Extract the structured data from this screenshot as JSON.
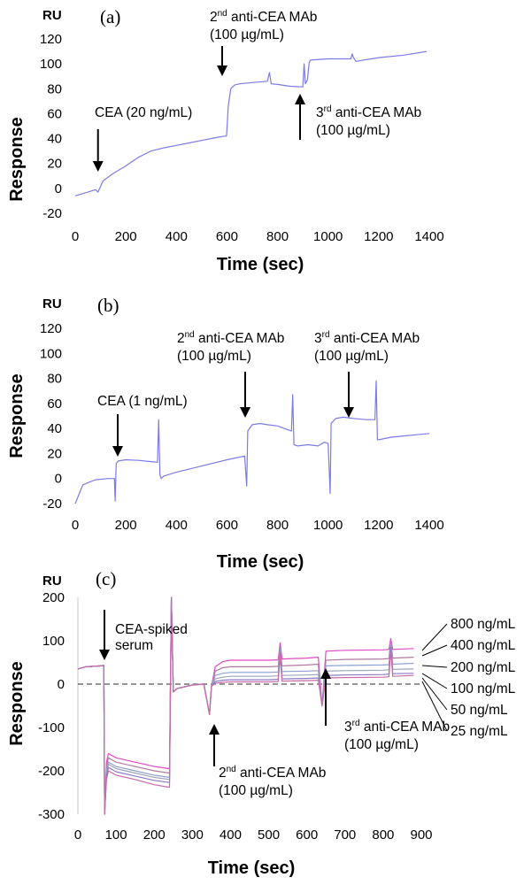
{
  "chart_data": [
    {
      "type": "line",
      "panel_label": "(a)",
      "unit_label": "RU",
      "xlabel": "Time (sec)",
      "ylabel": "Response",
      "xlim": [
        0,
        1400
      ],
      "ylim": [
        -20,
        120
      ],
      "xticks": [
        "0",
        "200",
        "400",
        "600",
        "800",
        "1000",
        "1200",
        "1400"
      ],
      "yticks": [
        "-20",
        "0",
        "20",
        "40",
        "60",
        "80",
        "100",
        "120"
      ],
      "color": "#7b7be6",
      "series": [
        {
          "x": [
            0,
            50,
            80,
            90,
            110,
            150,
            200,
            250,
            300,
            350,
            400,
            450,
            500,
            550,
            590,
            598,
            605,
            615,
            630,
            650,
            700,
            760,
            768,
            775,
            800,
            850,
            900,
            905,
            910,
            918,
            925,
            930,
            1000,
            1050,
            1090,
            1095,
            1100,
            1110,
            1200,
            1300,
            1390
          ],
          "y": [
            -6,
            -3,
            -1,
            -3,
            6,
            12,
            18,
            25,
            30,
            32.5,
            34.5,
            36.5,
            38.5,
            40.5,
            42,
            42,
            66,
            80,
            83,
            84,
            85,
            86,
            93,
            84,
            83.5,
            82,
            81.5,
            100,
            84,
            87,
            101,
            103,
            104,
            104,
            104,
            108,
            105,
            102,
            105,
            107,
            110
          ]
        }
      ],
      "annotations": [
        {
          "lines": [
            "CEA (20 ng/mL)"
          ],
          "arrow": "down",
          "x": 90
        },
        {
          "lines": [
            "2nd anti-CEA MAb",
            "(100 µg/mL)"
          ],
          "arrow": "down",
          "x": 600
        },
        {
          "lines": [
            "3rd anti-CEA MAb",
            "(100 µg/mL)"
          ],
          "arrow": "up",
          "x": 920
        }
      ]
    },
    {
      "type": "line",
      "panel_label": "(b)",
      "unit_label": "RU",
      "xlabel": "Time (sec)",
      "ylabel": "Response",
      "xlim": [
        0,
        1400
      ],
      "ylim": [
        -20,
        120
      ],
      "xticks": [
        "0",
        "200",
        "400",
        "600",
        "800",
        "1000",
        "1200",
        "1400"
      ],
      "yticks": [
        "-20",
        "0",
        "20",
        "40",
        "60",
        "80",
        "100",
        "120"
      ],
      "color": "#7b7be6",
      "series": [
        {
          "x": [
            0,
            30,
            80,
            130,
            155,
            158,
            162,
            170,
            200,
            250,
            300,
            325,
            330,
            335,
            340,
            350,
            400,
            500,
            600,
            670,
            678,
            682,
            700,
            730,
            760,
            800,
            840,
            855,
            860,
            865,
            880,
            920,
            960,
            985,
            1000,
            1008,
            1012,
            1030,
            1060,
            1100,
            1150,
            1185,
            1190,
            1195,
            1200,
            1250,
            1300,
            1350,
            1400
          ],
          "y": [
            -20,
            -5,
            -1,
            0,
            0,
            -18,
            12,
            14,
            15,
            14.5,
            13.5,
            13,
            47,
            3,
            0,
            2,
            5,
            10,
            15,
            18,
            -6,
            38,
            43,
            44,
            43,
            42,
            39,
            38,
            67,
            27,
            26,
            27,
            26,
            29,
            28,
            -12,
            44,
            48,
            49,
            48,
            47,
            47,
            78,
            31,
            31,
            33,
            34,
            35,
            36
          ]
        }
      ],
      "annotations": [
        {
          "lines": [
            "CEA (1 ng/mL)"
          ],
          "arrow": "down",
          "x": 160
        },
        {
          "lines": [
            "2nd anti-CEA MAb",
            "(100 µg/mL)"
          ],
          "arrow": "down",
          "x": 680
        },
        {
          "lines": [
            "3rd anti-CEA MAb",
            "(100 µg/mL)"
          ],
          "arrow": "down",
          "x": 1010
        }
      ]
    },
    {
      "type": "line",
      "panel_label": "(c)",
      "unit_label": "RU",
      "xlabel": "Time (sec)",
      "ylabel": "Response",
      "xlim": [
        0,
        900
      ],
      "ylim": [
        -300,
        200
      ],
      "xticks": [
        "0",
        "100",
        "200",
        "300",
        "400",
        "500",
        "600",
        "700",
        "800",
        "900"
      ],
      "yticks": [
        "-300",
        "-200",
        "-100",
        "0",
        "100",
        "200"
      ],
      "baseline": 0,
      "x": [
        0,
        20,
        60,
        68,
        70,
        75,
        80,
        100,
        150,
        200,
        240,
        245,
        250,
        260,
        300,
        330,
        345,
        350,
        360,
        380,
        400,
        500,
        525,
        530,
        535,
        600,
        630,
        640,
        650,
        700,
        800,
        815,
        820,
        825,
        880
      ],
      "series": [
        {
          "name": "800 ng/mL",
          "color": "#e04bc4",
          "y": [
            35,
            40,
            42,
            43,
            -300,
            -180,
            -160,
            -170,
            -180,
            -190,
            -195,
            200,
            -18,
            -10,
            -2,
            0,
            -70,
            -5,
            40,
            52,
            55,
            55,
            56,
            95,
            58,
            60,
            62,
            -50,
            76,
            78,
            79,
            80,
            105,
            80,
            82
          ]
        },
        {
          "name": "400 ng/mL",
          "color": "#b07aa0",
          "y": [
            35,
            40,
            42,
            43,
            -300,
            -190,
            -170,
            -180,
            -190,
            -200,
            -205,
            200,
            -18,
            -10,
            -2,
            0,
            -70,
            -5,
            30,
            38,
            40,
            40,
            41,
            85,
            42,
            44,
            46,
            -50,
            55,
            57,
            58,
            59,
            100,
            60,
            62
          ]
        },
        {
          "name": "200 ng/mL",
          "color": "#8fa0d0",
          "y": [
            35,
            40,
            42,
            43,
            -300,
            -200,
            -180,
            -190,
            -200,
            -210,
            -215,
            200,
            -18,
            -10,
            -2,
            0,
            -70,
            -5,
            20,
            25,
            27,
            27,
            28,
            80,
            29,
            30,
            31,
            -50,
            42,
            43,
            44,
            45,
            95,
            46,
            48
          ]
        },
        {
          "name": "100 ng/mL",
          "color": "#9aa6b8",
          "y": [
            35,
            40,
            42,
            43,
            -300,
            -205,
            -185,
            -195,
            -205,
            -215,
            -220,
            200,
            -18,
            -10,
            -2,
            0,
            -70,
            -5,
            12,
            16,
            18,
            18,
            19,
            75,
            20,
            21,
            22,
            -50,
            30,
            31,
            32,
            33,
            90,
            34,
            35
          ]
        },
        {
          "name": "50 ng/mL",
          "color": "#8c78c8",
          "y": [
            35,
            40,
            42,
            43,
            -300,
            -212,
            -192,
            -202,
            -212,
            -222,
            -227,
            200,
            -18,
            -10,
            -2,
            0,
            -70,
            -5,
            6,
            9,
            10,
            10,
            11,
            70,
            12,
            13,
            14,
            -50,
            20,
            21,
            22,
            23,
            85,
            24,
            25
          ]
        },
        {
          "name": "25 ng/mL",
          "color": "#c86aa8",
          "y": [
            35,
            40,
            42,
            43,
            -300,
            -220,
            -200,
            -210,
            -220,
            -232,
            -238,
            200,
            -18,
            -10,
            -2,
            0,
            -70,
            -5,
            2,
            4,
            5,
            5,
            6,
            65,
            7,
            8,
            9,
            -50,
            14,
            15,
            16,
            17,
            80,
            18,
            20
          ]
        }
      ],
      "annotations": [
        {
          "lines": [
            "CEA-spiked",
            "serum"
          ],
          "arrow": "down",
          "x": 70
        },
        {
          "lines": [
            "2nd anti-CEA MAb",
            "(100 µg/mL)"
          ],
          "arrow": "up",
          "x": 345
        },
        {
          "lines": [
            "3rd anti-CEA MAb",
            "(100 µg/mL)"
          ],
          "arrow": "up",
          "x": 637
        }
      ]
    }
  ]
}
